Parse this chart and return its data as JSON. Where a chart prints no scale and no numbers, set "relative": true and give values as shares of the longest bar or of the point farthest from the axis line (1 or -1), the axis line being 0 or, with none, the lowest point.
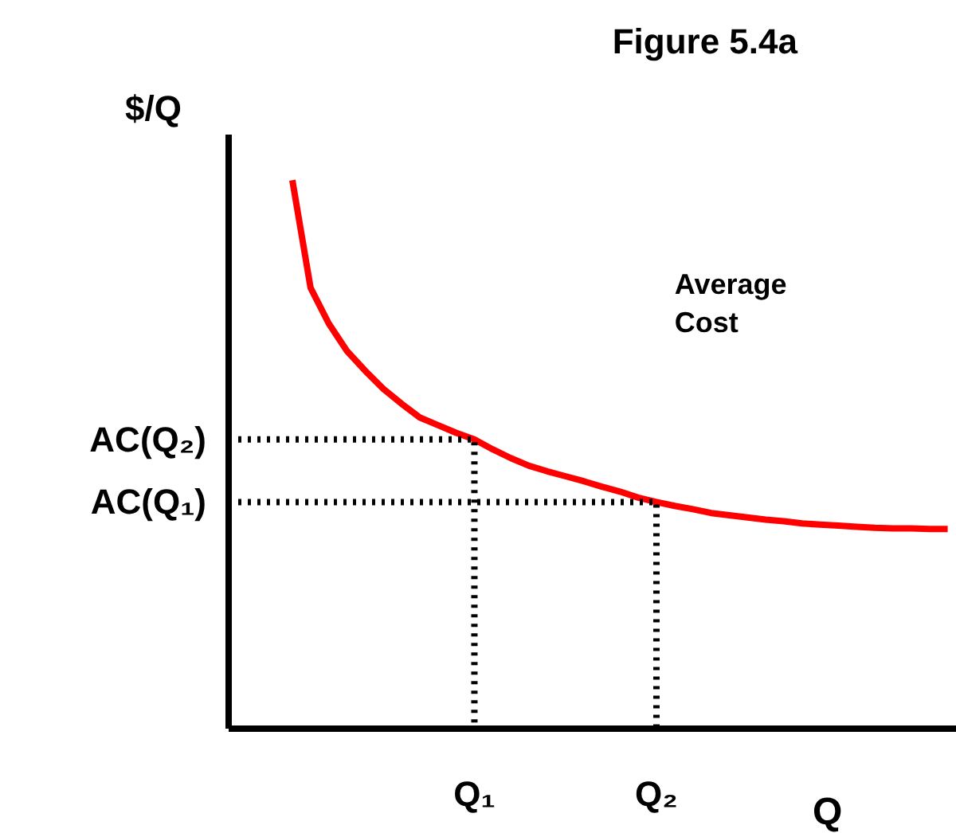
{
  "chart_data": {
    "type": "line",
    "title": "Figure 5.4a",
    "xlabel": "Q",
    "ylabel": "$/Q",
    "relative": true,
    "categories": [
      null,
      null,
      null,
      null,
      null,
      null,
      null,
      null,
      null,
      null,
      null,
      null,
      null,
      "Q₁",
      null,
      null,
      null,
      null,
      null,
      null,
      null,
      null,
      null,
      "Q₂",
      null,
      null,
      null,
      null,
      null,
      null,
      null,
      null,
      null,
      null,
      null,
      null,
      null,
      null,
      null,
      null
    ],
    "series": [
      {
        "name": "Average Cost",
        "color": "#ff0000",
        "values": [
          null,
          null,
          null,
          1.0,
          0.804,
          0.739,
          0.689,
          0.653,
          0.62,
          0.593,
          0.568,
          0.554,
          0.54,
          0.528,
          0.51,
          0.494,
          0.48,
          0.47,
          0.461,
          0.452,
          0.442,
          0.433,
          0.422,
          0.414,
          0.407,
          0.401,
          0.394,
          0.39,
          0.386,
          0.382,
          0.379,
          0.375,
          0.373,
          0.371,
          0.369,
          0.367,
          0.366,
          0.366,
          0.365,
          0.365
        ]
      }
    ],
    "annotations": [
      "AC(Q₂)",
      "AC(Q₁)"
    ]
  }
}
